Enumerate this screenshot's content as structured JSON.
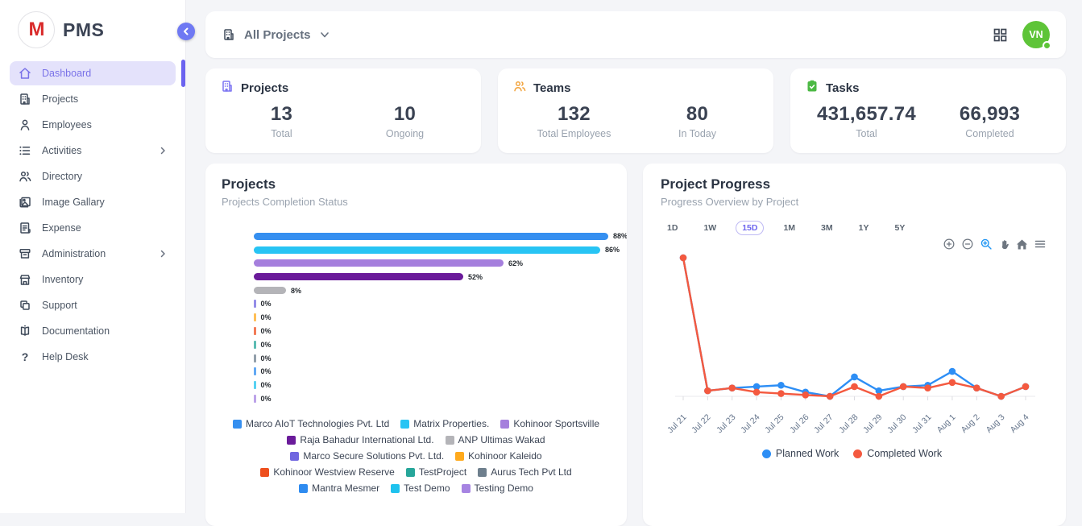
{
  "sidebar": {
    "logo_text": "PMS",
    "logo_letter": "M",
    "items": [
      {
        "label": "Dashboard",
        "icon": "home-icon",
        "active": true,
        "has_submenu": false
      },
      {
        "label": "Projects",
        "icon": "building-icon",
        "active": false,
        "has_submenu": false
      },
      {
        "label": "Employees",
        "icon": "person-icon",
        "active": false,
        "has_submenu": false
      },
      {
        "label": "Activities",
        "icon": "list-icon",
        "active": false,
        "has_submenu": true
      },
      {
        "label": "Directory",
        "icon": "people-icon",
        "active": false,
        "has_submenu": false
      },
      {
        "label": "Image Gallary",
        "icon": "image-icon",
        "active": false,
        "has_submenu": false
      },
      {
        "label": "Expense",
        "icon": "receipt-icon",
        "active": false,
        "has_submenu": false
      },
      {
        "label": "Administration",
        "icon": "archive-icon",
        "active": false,
        "has_submenu": true
      },
      {
        "label": "Inventory",
        "icon": "store-icon",
        "active": false,
        "has_submenu": false
      },
      {
        "label": "Support",
        "icon": "copy-icon",
        "active": false,
        "has_submenu": false
      },
      {
        "label": "Documentation",
        "icon": "book-icon",
        "active": false,
        "has_submenu": false
      },
      {
        "label": "Help Desk",
        "icon": "question-icon",
        "active": false,
        "has_submenu": false
      }
    ]
  },
  "topbar": {
    "project_filter_label": "All Projects",
    "avatar_initials": "VN"
  },
  "stats": [
    {
      "title": "Projects",
      "icon": "building-icon",
      "accent": "#7b74f2",
      "metrics": [
        {
          "value": "13",
          "label": "Total"
        },
        {
          "value": "10",
          "label": "Ongoing"
        }
      ]
    },
    {
      "title": "Teams",
      "icon": "people-icon",
      "accent": "#f2a33c",
      "metrics": [
        {
          "value": "132",
          "label": "Total Employees"
        },
        {
          "value": "80",
          "label": "In Today"
        }
      ]
    },
    {
      "title": "Tasks",
      "icon": "clipboard-check-icon",
      "accent": "#4cb944",
      "metrics": [
        {
          "value": "431,657.74",
          "label": "Total"
        },
        {
          "value": "66,993",
          "label": "Completed"
        }
      ]
    }
  ],
  "chart_data": [
    {
      "type": "bar",
      "orientation": "horizontal",
      "title": "Projects",
      "subtitle": "Projects Completion Status",
      "value_suffix": "%",
      "xlim": [
        0,
        100
      ],
      "legend_position": "bottom",
      "categories": [
        "Marco AIoT Technologies Pvt. Ltd",
        "Matrix Properties.",
        "Kohinoor Sportsville",
        "Raja Bahadur International Ltd.",
        "ANP Ultimas Wakad",
        "Marco Secure Solutions Pvt. Ltd.",
        "Kohinoor Kaleido",
        "Kohinoor Westview Reserve",
        "TestProject",
        "Aurus Tech Pvt Ltd",
        "Mantra Mesmer",
        "Test Demo",
        "Testing Demo"
      ],
      "values": [
        88,
        86,
        62,
        52,
        8,
        0,
        0,
        0,
        0,
        0,
        0,
        0,
        0
      ],
      "colors": [
        "#358ff0",
        "#27c4f4",
        "#a57fdd",
        "#6a1b9a",
        "#b4b4b8",
        "#7066e0",
        "#ffaa1d",
        "#ee4f1e",
        "#26a69a",
        "#6e7f8d",
        "#2e8bf0",
        "#1fc2ee",
        "#a684e2"
      ]
    },
    {
      "type": "line",
      "title": "Project Progress",
      "subtitle": "Progress Overview by Project",
      "range_buttons": [
        "1D",
        "1W",
        "15D",
        "1M",
        "3M",
        "1Y",
        "5Y"
      ],
      "selected_range": "15D",
      "toolbar_icons": [
        "zoom-in-icon",
        "zoom-out-icon",
        "selection-zoom-icon",
        "pan-icon",
        "home-icon",
        "menu-icon"
      ],
      "legend_position": "bottom",
      "grid": false,
      "ylim": [
        0,
        100
      ],
      "x": [
        "Jul 21",
        "Jul 22",
        "Jul 23",
        "Jul 24",
        "Jul 25",
        "Jul 26",
        "Jul 27",
        "Jul 28",
        "Jul 29",
        "Jul 30",
        "Jul 31",
        "Aug 1",
        "Aug 2",
        "Aug 3",
        "Aug 4"
      ],
      "series": [
        {
          "name": "Planned Work",
          "color": "#2d8ef5",
          "values": [
            100,
            4,
            6,
            7,
            8,
            3,
            0,
            14,
            4,
            7,
            8,
            18,
            6,
            0,
            7
          ]
        },
        {
          "name": "Completed Work",
          "color": "#f4593f",
          "values": [
            100,
            4,
            6,
            3,
            2,
            1,
            0,
            7,
            0,
            7,
            6,
            10,
            6,
            0,
            7
          ]
        }
      ]
    }
  ]
}
